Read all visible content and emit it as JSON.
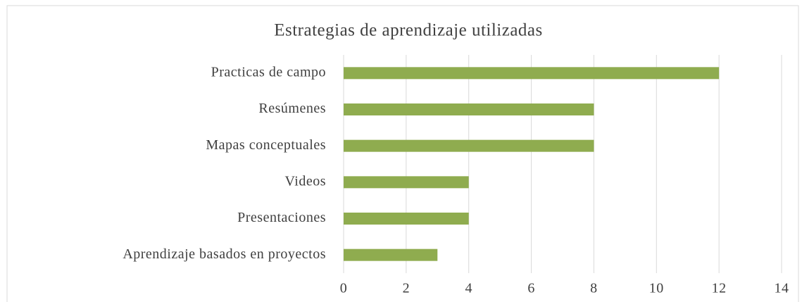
{
  "chart_data": {
    "type": "bar",
    "orientation": "horizontal",
    "title": "Estrategias  de aprendizaje  utilizadas",
    "categories": [
      "Practicas de campo",
      "Resúmenes",
      "Mapas conceptuales",
      "Videos",
      "Presentaciones",
      "Aprendizaje basados en proyectos"
    ],
    "values": [
      12,
      8,
      8,
      4,
      4,
      3
    ],
    "color": "#8fac4f",
    "xlim": [
      0,
      14
    ],
    "xticks": [
      0,
      2,
      4,
      6,
      8,
      10,
      12,
      14
    ],
    "grid": true
  }
}
